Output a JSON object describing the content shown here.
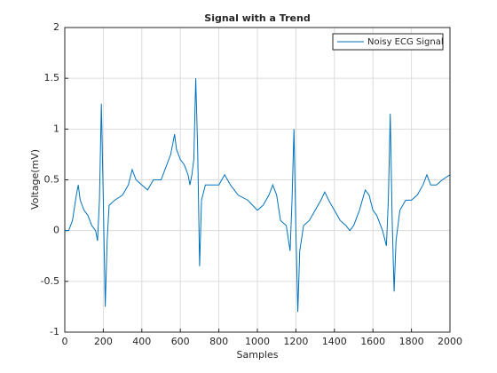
{
  "chart_data": {
    "type": "line",
    "title": "Signal with a Trend",
    "xlabel": "Samples",
    "ylabel": "Voltage(mV)",
    "x": [
      0,
      20,
      40,
      60,
      70,
      80,
      100,
      120,
      140,
      160,
      170,
      180,
      190,
      200,
      210,
      220,
      230,
      260,
      300,
      330,
      350,
      370,
      400,
      430,
      460,
      500,
      520,
      550,
      570,
      580,
      600,
      620,
      640,
      650,
      660,
      670,
      680,
      690,
      700,
      710,
      730,
      760,
      800,
      830,
      860,
      900,
      950,
      1000,
      1030,
      1060,
      1080,
      1100,
      1120,
      1150,
      1170,
      1180,
      1190,
      1200,
      1210,
      1220,
      1240,
      1270,
      1300,
      1330,
      1350,
      1370,
      1400,
      1430,
      1460,
      1480,
      1500,
      1530,
      1560,
      1580,
      1600,
      1620,
      1650,
      1670,
      1680,
      1690,
      1700,
      1710,
      1720,
      1740,
      1770,
      1800,
      1830,
      1860,
      1880,
      1900,
      1930,
      1960,
      2000
    ],
    "series": [
      {
        "name": "Noisy ECG Signal",
        "color": "#0072bd",
        "values": [
          0,
          0.0,
          0.1,
          0.35,
          0.45,
          0.3,
          0.2,
          0.15,
          0.05,
          0.0,
          -0.1,
          0.3,
          1.25,
          0.3,
          -0.75,
          -0.1,
          0.25,
          0.3,
          0.35,
          0.45,
          0.6,
          0.5,
          0.45,
          0.4,
          0.5,
          0.5,
          0.6,
          0.75,
          0.95,
          0.8,
          0.7,
          0.65,
          0.55,
          0.45,
          0.55,
          0.7,
          1.5,
          0.8,
          -0.35,
          0.3,
          0.45,
          0.45,
          0.45,
          0.55,
          0.45,
          0.35,
          0.3,
          0.2,
          0.25,
          0.35,
          0.45,
          0.35,
          0.1,
          0.05,
          -0.2,
          0.3,
          1.0,
          0.0,
          -0.8,
          -0.2,
          0.05,
          0.1,
          0.2,
          0.3,
          0.38,
          0.3,
          0.2,
          0.1,
          0.05,
          0.0,
          0.05,
          0.2,
          0.4,
          0.35,
          0.2,
          0.15,
          0.0,
          -0.15,
          0.3,
          1.15,
          0.1,
          -0.6,
          -0.1,
          0.2,
          0.3,
          0.3,
          0.35,
          0.45,
          0.55,
          0.45,
          0.45,
          0.5,
          0.55
        ]
      }
    ],
    "xlim": [
      0,
      2000
    ],
    "xticks": [
      0,
      200,
      400,
      600,
      800,
      1000,
      1200,
      1400,
      1600,
      1800,
      2000
    ],
    "ylim": [
      -1,
      2
    ],
    "yticks": [
      -1,
      -0.5,
      0,
      0.5,
      1,
      1.5,
      2
    ],
    "grid": true,
    "legend": "northeast"
  }
}
